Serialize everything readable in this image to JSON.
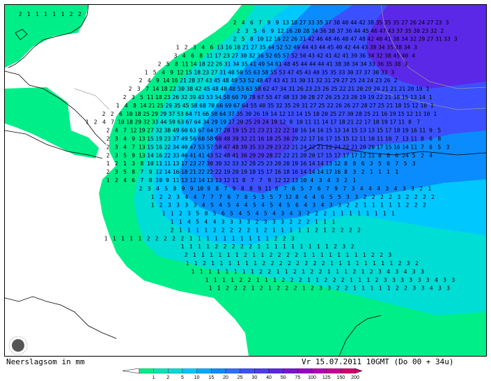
{
  "caption": "Neerslagsom in mm",
  "valid_time": "Vr 15.07.2011 10GMT (Do 00 + 34u)",
  "legend": {
    "unit": "mm",
    "ticks": [
      "1",
      "2",
      "5",
      "10",
      "15",
      "20",
      "25",
      "30",
      "40",
      "50",
      "75",
      "100",
      "125",
      "150",
      "200"
    ],
    "colors": [
      "#00ee88",
      "#00e6b4",
      "#00ddd4",
      "#00c8ff",
      "#00aaff",
      "#0a8cff",
      "#2d6eff",
      "#3c50ff",
      "#4b3cf0",
      "#5a28e6",
      "#7814d2",
      "#9b00c8",
      "#b400b4",
      "#c80096",
      "#d2006e"
    ]
  },
  "map": {
    "land_color": "#ffffff",
    "coastline_color": "#000000",
    "border_color": "#9a9a9a",
    "description_values_note": "",
    "grid_rows": [
      "2 1 1 1 1 1 2 2 ",
      " 2 4 6 7 9 9 13 18 27 33 35 37 38 40 44 42 38 35 35 35 27 26 24 27 23 3",
      "2 3 5 6 9 12 16 20 28 34 36 38 37 36 44 45 46 47 43 37 35 30 23 32 2",
      "2 5 8 10 12 16 22 26 31 42 46 48 46 48 47 48 42 40 41 38 34 32 29 27 31 33 3",
      "1 2 3 4 6 13 16 18 21 27 35 44 52 52 49 44 43 44 45 40 42 44 43 38 34 35 38 34 3",
      "3 4 6 8 11 17 23 27 30 32 36 52 65 57 52 50 43 42 41 42 41 39 36 34 32 38 45 40 4",
      "2 5 8 11 14 18 22 26 31 34 35 41 49 54 61 48 45 44 44 44 41 38 38 34 34 33 36 35 38 3",
      "1 5 4 9 12 15 18 23 27 31 40 50 55 63 58 55 53 47 45 43 40 35 35 33 30 37 37 30 33 3",
      "2 4 9 14 16 21 28 37 43 45 48 49 53 52 48 47 43 41 31 30 31 32 31 29 27 25 24 24 23 26 2",
      "2 3 7 14 18 22 30 38 42 45 48 48 48 53 63 58 62 47 34 31 26 23 23 26 25 22 21 20 20 20 21 21 21 20 19 1",
      "2 3 5 11 18 23 26 32 39 43 53 54 58 60 70 78 67 55 47 48 33 30 28 27 26 25 23 20 19 19 22 21 18 15 13 14 1",
      "1 4 8 14 21 25 29 35 45 58 68 70 66 69 67 64 55 40 35 32 35 29 31 27 25 22 26 26 27 28 27 25 21 18 15 12 10 1",
      "2 2 6 10 18 25 29 29 37 53 64 71 66 58 64 37 35 30 26 19 14 12 13 14 15 18 20 25 27 30 28 25 21 16 19 15 12 11 10 1",
      "1 2 4 7 10 18 29 32 33 44 59 63 67 64 34 29 19 17 20 25 29 24 19 12 9 10 11 11 14 17 18 21 22 17 18 19 17 11 8 7",
      "2 4 7 12 19 27 32 38 49 60 63 67 64 37 28 19 15 21 23 21 22 22 18 16 14 16 15 13 14 15 13 13 15 17 18 19 16 11 9 5",
      "2 3 4 9 13 15 19 23 37 49 56 60 58 60 48 39 32 21 16 18 25 30 29 22 17 16 17 15 15 12 11 10 11 10 7 13 11 8 6 8",
      "2 3 4 7 13 15 16 22 34 40 47 53 57 58 47 48 39 35 33 29 23 22 21 24 22 21 22 24 22 21 20 20 17 15 16 14 11 7 6 5 3",
      "2 3 5 9 13 14 16 22 33 40 41 41 43 52 48 41 36 29 29 28 22 22 21 20 20 17 15 17 17 17 12 11 8 8 6 24 5 2 4",
      "1 2 1 3 8 10 11 11 13 17 23 27 30 30 32 33 32 28 25 23 20 20 19 16 14 14 13 12 8 8 6 3 5 6 7 5 3",
      "2 3 5 8 7 9 12 14 16 18 21 22 22 22 19 20 19 18 15 17 16 18 16 14 14 14 17 16 8 3 2 1 1 1 1",
      "1 2 4 6 7 8 10 9 11 13 12 14 13 13 12 11 8 7 7 9 12 12 13 10 4 3 4 3 2 1",
      "2 3 4 5 8 9 9 10 9 8 7 9 8 8 9 11 8 7 6 5 7 6 7 9 7 3 4 4 4 3 4 3 3 2 1",
      "1 2 2 3 4 4 7 7 7 6 7 8 5 5 5 7 12 8 4 4 6 5 5 3 3 2 2 2 2 3 2 2 2 2",
      "1 2 3 3 3 3 4 5 4 5 4 4 5 4 5 4 5 6 4 3 4 3 3 2 2 1 1 1 1 1 2 2 2",
      "1 1 2 3 5 8 5 6 5 4 5 4 5 4 3 4 3 2 2 2 1 1 1 1 1 1 1 1",
      "1 1 4 5 4 4 3 3 3 3 2 3 3 3 2 2 2 1 1 1",
      "2 1 1 1 1 2 2 2 2 2 1 2 1 1 1 1 1 2 1 2 2 2 2",
      "1 1 1 1 1 2 2 2 2 2 1 1 1 1 1 1 1 1 1 1 2 2 3",
      "1 1 1 1 2 2 2 2 2 1 1 1 1 1 1 1 1 1 2 3 2",
      "2 1 1 1 1 1 1 2 1 1 2 2 2 2 1 1 1 1 1 1 1 1 2 2 3",
      "1 1 2 1 1 1 1 1 1 2 2 2 2 2 2 2 2 1 1 1 1 1 1 1 1 2 3 2",
      "1 1 1 1 1 1 1 1 2 2 1 1 2 1 2 2 1 1 1 2 1 2 3 4 3 4 3 3",
      "1 1 1 1 2 2 1 1 1 2 2 2 1 1 2 2 2 1 1 1 2 3 3 3 3 3 3 4 3 3",
      "1 1 2 2 2 1 2 1 2 2 2 1 2 3 3 2 2 1 1 1 1 1 2 2 3 3 4 3 3"
    ]
  }
}
